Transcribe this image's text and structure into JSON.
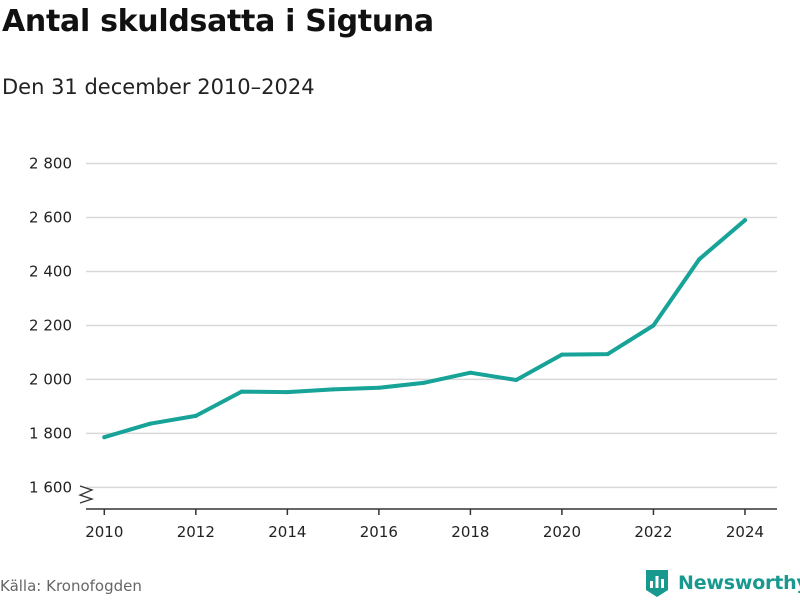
{
  "header": {
    "title": "Antal skuldsatta i Sigtuna",
    "subtitle": "Den 31 december 2010–2024"
  },
  "footer": {
    "source": "Källa: Kronofogden",
    "brand": "Newsworthy"
  },
  "colors": {
    "line": "#17a398",
    "grid": "#d9d9d9",
    "axis": "#333333",
    "brand": "#17998f"
  },
  "icons": {
    "brand_logo": "bar-chart-shield-icon",
    "axis_break": "zigzag-break-icon"
  },
  "chart_data": {
    "type": "line",
    "title": "Antal skuldsatta i Sigtuna",
    "subtitle": "Den 31 december 2010–2024",
    "x": [
      2010,
      2011,
      2012,
      2013,
      2014,
      2015,
      2016,
      2017,
      2018,
      2019,
      2020,
      2021,
      2022,
      2023,
      2024
    ],
    "series": [
      {
        "values": [
          1786,
          1836,
          1865,
          1955,
          1953,
          1963,
          1969,
          1988,
          2025,
          1998,
          2092,
          2094,
          2200,
          2445,
          2590
        ]
      }
    ],
    "x_ticks": [
      2010,
      2012,
      2014,
      2016,
      2018,
      2020,
      2022,
      2024
    ],
    "x_tick_labels": [
      "2010",
      "2012",
      "2014",
      "2016",
      "2018",
      "2020",
      "2022",
      "2024"
    ],
    "y_ticks": [
      1600,
      1800,
      2000,
      2200,
      2400,
      2600,
      2800
    ],
    "y_tick_labels": [
      "1 600",
      "1 800",
      "2 000",
      "2 200",
      "2 400",
      "2 600",
      "2 800"
    ],
    "xlim": [
      2009.6,
      2024.7
    ],
    "ylim": [
      1520,
      2850
    ],
    "grid": true,
    "y_axis_break": true
  }
}
